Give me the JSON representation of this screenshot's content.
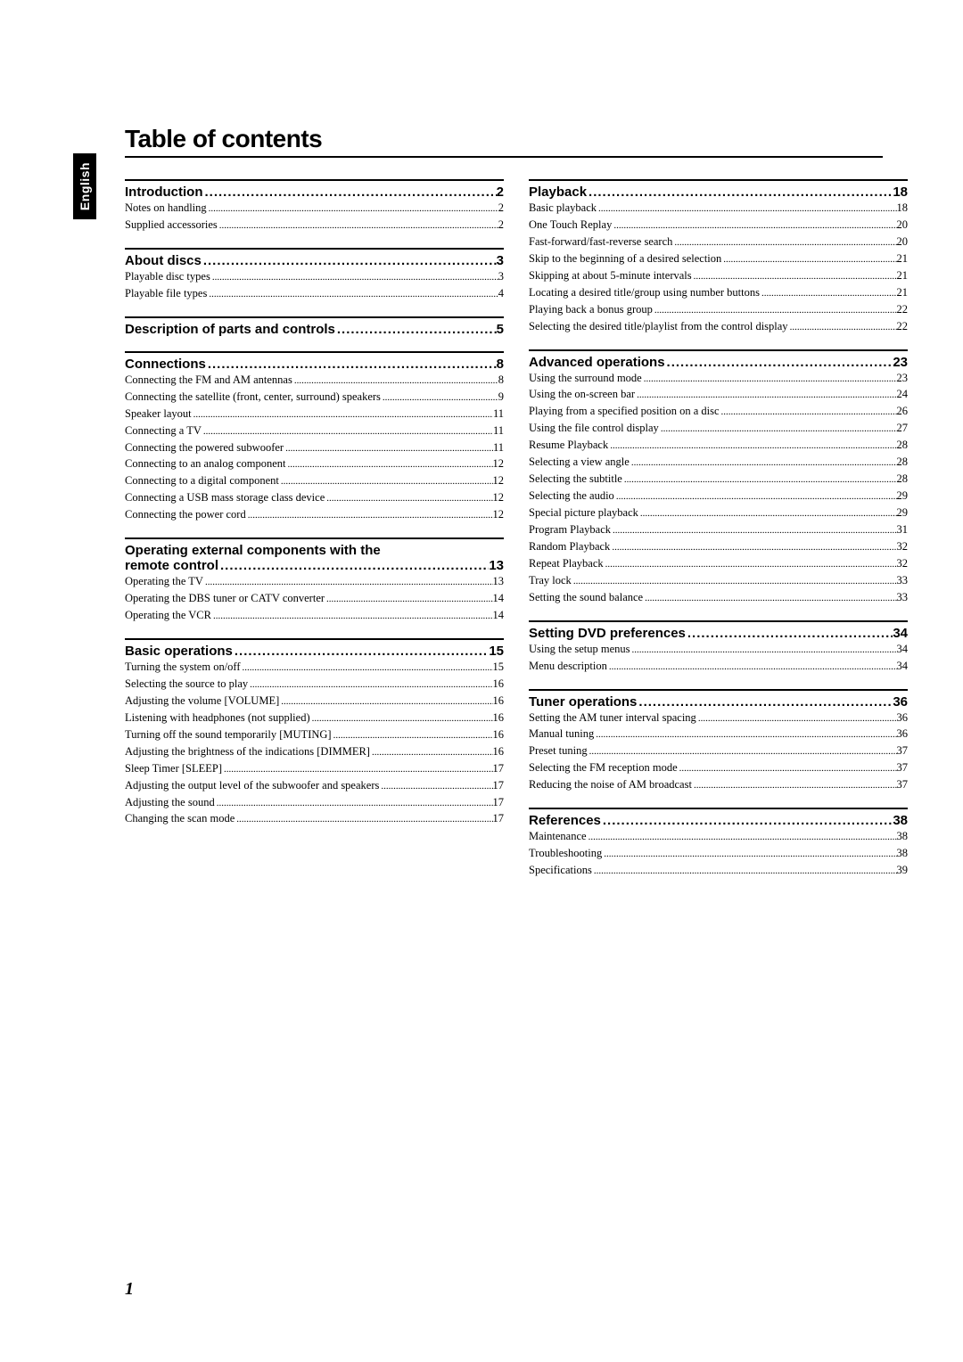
{
  "sideTab": "English",
  "title": "Table of contents",
  "pageNumber": "1",
  "dotsHeavy": "..............................................................................",
  "dotsLight": "....................................................................................................................................",
  "left": [
    {
      "head": {
        "label": "Introduction ",
        "page": "2"
      },
      "entries": [
        {
          "label": "Notes on handling ",
          "page": " 2"
        },
        {
          "label": "Supplied accessories ",
          "page": " 2"
        }
      ]
    },
    {
      "head": {
        "label": "About discs ",
        "page": "3"
      },
      "entries": [
        {
          "label": "Playable disc types ",
          "page": " 3"
        },
        {
          "label": "Playable file types ",
          "page": " 4"
        }
      ]
    },
    {
      "head": {
        "label": "Description of parts and controls ",
        "page": "5"
      },
      "entries": []
    },
    {
      "head": {
        "label": "Connections ",
        "page": "8"
      },
      "entries": [
        {
          "label": "Connecting the FM and AM antennas ",
          "page": " 8"
        },
        {
          "label": "Connecting the satellite (front, center, surround) speakers ",
          "page": " 9"
        },
        {
          "label": "Speaker layout ",
          "page": " 11"
        },
        {
          "label": "Connecting a TV ",
          "page": " 11"
        },
        {
          "label": "Connecting the powered subwoofer ",
          "page": " 11"
        },
        {
          "label": "Connecting to an analog component ",
          "page": " 12"
        },
        {
          "label": "Connecting to a digital component ",
          "page": " 12"
        },
        {
          "label": "Connecting a USB mass storage class device ",
          "page": " 12"
        },
        {
          "label": "Connecting the power cord ",
          "page": " 12"
        }
      ]
    },
    {
      "multihead": [
        "Operating external components with the",
        {
          "label": "remote control ",
          "page": "13"
        }
      ],
      "entries": [
        {
          "label": "Operating the TV ",
          "page": " 13"
        },
        {
          "label": "Operating the DBS tuner or CATV converter ",
          "page": " 14"
        },
        {
          "label": "Operating the VCR ",
          "page": " 14"
        }
      ]
    },
    {
      "head": {
        "label": "Basic operations ",
        "page": "15"
      },
      "entries": [
        {
          "label": "Turning the system on/off ",
          "page": " 15"
        },
        {
          "label": "Selecting the source to play ",
          "page": " 16"
        },
        {
          "label": "Adjusting the volume [VOLUME] ",
          "page": " 16"
        },
        {
          "label": "Listening with headphones (not supplied) ",
          "page": " 16"
        },
        {
          "label": "Turning off the sound temporarily [MUTING] ",
          "page": " 16"
        },
        {
          "label": "Adjusting the brightness of the indications [DIMMER] ",
          "page": " 16"
        },
        {
          "label": "Sleep Timer [SLEEP] ",
          "page": " 17"
        },
        {
          "label": "Adjusting the output level of the subwoofer and speakers ",
          "page": "17"
        },
        {
          "label": "Adjusting the sound ",
          "page": " 17"
        },
        {
          "label": "Changing the scan mode ",
          "page": " 17"
        }
      ]
    }
  ],
  "right": [
    {
      "head": {
        "label": "Playback ",
        "page": " 18"
      },
      "entries": [
        {
          "label": "Basic playback ",
          "page": "18"
        },
        {
          "label": "One Touch Replay ",
          "page": "20"
        },
        {
          "label": "Fast-forward/fast-reverse search ",
          "page": "20"
        },
        {
          "label": "Skip to the beginning of a desired selection ",
          "page": "21"
        },
        {
          "label": "Skipping at about 5-minute intervals ",
          "page": "21"
        },
        {
          "label": "Locating a desired title/group using number buttons ",
          "page": "21"
        },
        {
          "label": "Playing back a bonus group ",
          "page": "22"
        },
        {
          "label": "Selecting the desired title/playlist from the control display ",
          "page": "22"
        }
      ]
    },
    {
      "head": {
        "label": "Advanced operations ",
        "page": " 23"
      },
      "entries": [
        {
          "label": "Using the surround mode ",
          "page": "23"
        },
        {
          "label": "Using the on-screen bar ",
          "page": "24"
        },
        {
          "label": "Playing from a specified position on a disc ",
          "page": "26"
        },
        {
          "label": "Using the file control display ",
          "page": "27"
        },
        {
          "label": "Resume Playback ",
          "page": "28"
        },
        {
          "label": "Selecting a view angle ",
          "page": "28"
        },
        {
          "label": "Selecting the subtitle ",
          "page": "28"
        },
        {
          "label": "Selecting the audio ",
          "page": "29"
        },
        {
          "label": "Special picture playback ",
          "page": "29"
        },
        {
          "label": "Program Playback ",
          "page": "31"
        },
        {
          "label": "Random Playback ",
          "page": "32"
        },
        {
          "label": "Repeat Playback ",
          "page": "32"
        },
        {
          "label": "Tray lock ",
          "page": "33"
        },
        {
          "label": "Setting the sound balance ",
          "page": "33"
        }
      ]
    },
    {
      "head": {
        "label": "Setting DVD preferences ",
        "page": " 34"
      },
      "entries": [
        {
          "label": "Using the setup menus ",
          "page": "34"
        },
        {
          "label": "Menu description ",
          "page": "34"
        }
      ]
    },
    {
      "head": {
        "label": "Tuner operations ",
        "page": " 36"
      },
      "entries": [
        {
          "label": "Setting the AM tuner interval spacing ",
          "page": "36"
        },
        {
          "label": "Manual tuning ",
          "page": "36"
        },
        {
          "label": "Preset tuning ",
          "page": "37"
        },
        {
          "label": "Selecting the FM reception mode ",
          "page": "37"
        },
        {
          "label": "Reducing the noise of AM broadcast ",
          "page": "37"
        }
      ]
    },
    {
      "head": {
        "label": "References ",
        "page": " 38"
      },
      "entries": [
        {
          "label": "Maintenance ",
          "page": "38"
        },
        {
          "label": "Troubleshooting ",
          "page": "38"
        },
        {
          "label": "Specifications ",
          "page": "39"
        }
      ]
    }
  ]
}
